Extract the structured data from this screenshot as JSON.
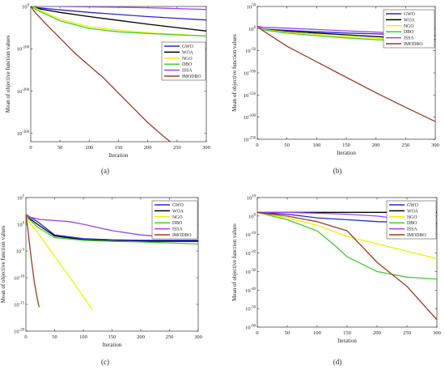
{
  "series_colors": {
    "GWO": "#2727d0",
    "WOA": "#000000",
    "NGO": "#f0f000",
    "DBO": "#40cc30",
    "ISSA": "#a040f0",
    "IMODBO": "#9a3b22"
  },
  "chart_data": [
    {
      "type": "line",
      "panel_label": "(a)",
      "xlabel": "Iteration",
      "ylabel": "Mean of objective function values",
      "y_scale": "log",
      "xlim": [
        0,
        300
      ],
      "ylim_exp": [
        -320,
        0
      ],
      "x_ticks": [
        0,
        50,
        100,
        150,
        200,
        250,
        300
      ],
      "y_ticks": [
        {
          "exp": 0,
          "label": "10^0"
        },
        {
          "exp": -100,
          "label": "10^-100"
        },
        {
          "exp": -200,
          "label": "10^-200"
        },
        {
          "exp": -300,
          "label": "10^-300"
        }
      ],
      "legend_position": "middle-right",
      "series": [
        {
          "name": "GWO",
          "x": [
            0,
            5,
            50,
            100,
            150,
            200,
            250,
            300
          ],
          "y_exp": [
            2,
            -2,
            -8,
            -14,
            -19,
            -24,
            -28,
            -32
          ]
        },
        {
          "name": "WOA",
          "x": [
            0,
            5,
            50,
            100,
            150,
            200,
            250,
            300
          ],
          "y_exp": [
            2,
            -3,
            -14,
            -24,
            -33,
            -42,
            -50,
            -58
          ]
        },
        {
          "name": "NGO",
          "x": [
            0,
            10,
            50,
            100,
            150,
            200,
            250,
            300
          ],
          "y_exp": [
            2,
            -5,
            -30,
            -48,
            -56,
            -62,
            -66,
            -70
          ]
        },
        {
          "name": "DBO",
          "x": [
            0,
            10,
            50,
            100,
            150,
            200,
            250,
            300
          ],
          "y_exp": [
            2,
            -8,
            -34,
            -52,
            -60,
            -64,
            -67,
            -70
          ]
        },
        {
          "name": "ISSA",
          "x": [
            0,
            5,
            50,
            100,
            150,
            200,
            250,
            300
          ],
          "y_exp": [
            2,
            1,
            0,
            -1,
            -2,
            -3,
            -5,
            -7
          ]
        },
        {
          "name": "IMODBO",
          "x": [
            0,
            5,
            25,
            50,
            75,
            100,
            125,
            150,
            175,
            200,
            225,
            240
          ],
          "y_exp": [
            2,
            -10,
            -40,
            -75,
            -110,
            -140,
            -170,
            -205,
            -240,
            -275,
            -305,
            -322
          ]
        }
      ]
    },
    {
      "type": "line",
      "panel_label": "(b)",
      "xlabel": "Iteration",
      "ylabel": "Mean of objective function values",
      "y_scale": "log",
      "xlim": [
        0,
        300
      ],
      "ylim_exp": [
        -250,
        50
      ],
      "x_ticks": [
        0,
        50,
        100,
        150,
        200,
        250,
        300
      ],
      "y_ticks": [
        {
          "exp": 50,
          "label": "10^50"
        },
        {
          "exp": 0,
          "label": "10^0"
        },
        {
          "exp": -50,
          "label": "10^-50"
        },
        {
          "exp": -100,
          "label": "10^-100"
        },
        {
          "exp": -150,
          "label": "10^-150"
        },
        {
          "exp": -200,
          "label": "10^-200"
        },
        {
          "exp": -250,
          "label": "10^-250"
        }
      ],
      "legend_position": "top-right",
      "series": [
        {
          "name": "GWO",
          "x": [
            0,
            10,
            50,
            100,
            150,
            200,
            250,
            300
          ],
          "y_exp": [
            5,
            -1,
            -4,
            -7,
            -10,
            -12,
            -14,
            -16
          ]
        },
        {
          "name": "WOA",
          "x": [
            0,
            10,
            50,
            100,
            150,
            200,
            250,
            300
          ],
          "y_exp": [
            5,
            -2,
            -6,
            -10,
            -14,
            -18,
            -22,
            -25
          ]
        },
        {
          "name": "NGO",
          "x": [
            0,
            10,
            50,
            100,
            150,
            200,
            250,
            300
          ],
          "y_exp": [
            5,
            -2,
            -8,
            -13,
            -18,
            -22,
            -26,
            -29
          ]
        },
        {
          "name": "DBO",
          "x": [
            0,
            10,
            50,
            100,
            150,
            200,
            250,
            300
          ],
          "y_exp": [
            5,
            -3,
            -10,
            -16,
            -21,
            -25,
            -28,
            -30
          ]
        },
        {
          "name": "ISSA",
          "x": [
            0,
            10,
            50,
            100,
            150,
            200,
            250,
            300
          ],
          "y_exp": [
            5,
            3,
            1,
            -2,
            -5,
            -8,
            -11,
            -13
          ]
        },
        {
          "name": "IMODBO",
          "x": [
            0,
            10,
            50,
            100,
            150,
            200,
            250,
            300
          ],
          "y_exp": [
            5,
            -5,
            -40,
            -75,
            -110,
            -145,
            -178,
            -210
          ]
        }
      ]
    },
    {
      "type": "line",
      "panel_label": "(c)",
      "xlabel": "Iteration",
      "ylabel": "Mean of objective function values",
      "y_scale": "log",
      "xlim": [
        0,
        300
      ],
      "ylim_exp": [
        -20,
        5
      ],
      "x_ticks": [
        0,
        50,
        100,
        150,
        200,
        250,
        300
      ],
      "y_ticks": [
        {
          "exp": 5,
          "label": "10^5"
        },
        {
          "exp": 0,
          "label": "10^0"
        },
        {
          "exp": -5,
          "label": "10^-5"
        },
        {
          "exp": -10,
          "label": "10^-10"
        },
        {
          "exp": -15,
          "label": "10^-15"
        },
        {
          "exp": -20,
          "label": "10^-20"
        }
      ],
      "legend_position": "top-right",
      "series": [
        {
          "name": "GWO",
          "x": [
            0,
            5,
            20,
            50,
            100,
            150,
            200,
            250,
            300
          ],
          "y_exp": [
            1.8,
            1.5,
            0.5,
            -2.0,
            -2.7,
            -2.9,
            -3.0,
            -3.0,
            -3.0
          ]
        },
        {
          "name": "WOA",
          "x": [
            0,
            5,
            20,
            50,
            100,
            150,
            200,
            250,
            300
          ],
          "y_exp": [
            1.8,
            1.2,
            0.0,
            -2.2,
            -2.9,
            -3.1,
            -3.2,
            -3.2,
            -3.2
          ]
        },
        {
          "name": "NGO",
          "x": [
            0,
            5,
            20,
            50,
            80,
            100,
            115
          ],
          "y_exp": [
            1.8,
            0.5,
            -1.5,
            -6.0,
            -10.5,
            -13.5,
            -16.0
          ]
        },
        {
          "name": "DBO",
          "x": [
            0,
            5,
            20,
            50,
            100,
            150,
            200,
            250,
            300
          ],
          "y_exp": [
            1.8,
            1.0,
            -0.5,
            -2.5,
            -3.0,
            -3.2,
            -3.3,
            -3.5,
            -3.7
          ]
        },
        {
          "name": "ISSA",
          "x": [
            0,
            5,
            25,
            75,
            100,
            150,
            200,
            250,
            300
          ],
          "y_exp": [
            1.8,
            1.4,
            0.9,
            0.5,
            0.0,
            -1.2,
            -2.0,
            -2.4,
            -2.5
          ]
        },
        {
          "name": "IMODBO",
          "x": [
            0,
            3,
            6,
            10,
            15,
            20,
            23
          ],
          "y_exp": [
            1.8,
            -0.5,
            -3.5,
            -7.0,
            -11.0,
            -14.0,
            -15.5
          ]
        }
      ]
    },
    {
      "type": "line",
      "panel_label": "(d)",
      "xlabel": "Iteration",
      "ylabel": "Mean of objective function values",
      "y_scale": "log",
      "xlim": [
        0,
        300
      ],
      "ylim_exp": [
        -60,
        10
      ],
      "x_ticks": [
        0,
        50,
        100,
        150,
        200,
        250,
        300
      ],
      "y_ticks": [
        {
          "exp": 10,
          "label": "10^10"
        },
        {
          "exp": 0,
          "label": "10^0"
        },
        {
          "exp": -10,
          "label": "10^-10"
        },
        {
          "exp": -20,
          "label": "10^-20"
        },
        {
          "exp": -30,
          "label": "10^-30"
        },
        {
          "exp": -40,
          "label": "10^-40"
        },
        {
          "exp": -50,
          "label": "10^-50"
        },
        {
          "exp": -60,
          "label": "10^-60"
        }
      ],
      "legend_position": "top-right",
      "series": [
        {
          "name": "GWO",
          "x": [
            0,
            50,
            100,
            150,
            200,
            250,
            300
          ],
          "y_exp": [
            2,
            1,
            -1,
            -2,
            -3,
            -3.5,
            -4
          ]
        },
        {
          "name": "WOA",
          "x": [
            0,
            50,
            100,
            150,
            200,
            250,
            300
          ],
          "y_exp": [
            2,
            2,
            2,
            2,
            2,
            2,
            2
          ]
        },
        {
          "name": "NGO",
          "x": [
            0,
            50,
            100,
            150,
            200,
            250,
            300
          ],
          "y_exp": [
            2,
            -1,
            -5,
            -11,
            -15,
            -19,
            -23
          ]
        },
        {
          "name": "DBO",
          "x": [
            0,
            50,
            100,
            130,
            150,
            200,
            250,
            300
          ],
          "y_exp": [
            2,
            -2,
            -8,
            -16,
            -22,
            -30,
            -33,
            -34
          ]
        },
        {
          "name": "ISSA",
          "x": [
            0,
            50,
            100,
            150,
            200,
            250,
            300
          ],
          "y_exp": [
            2,
            2,
            1.5,
            1,
            0,
            -2,
            -6
          ]
        },
        {
          "name": "IMODBO",
          "x": [
            0,
            50,
            100,
            150,
            200,
            250,
            300
          ],
          "y_exp": [
            2,
            0,
            -3,
            -8,
            -25,
            -38,
            -56
          ]
        }
      ]
    }
  ]
}
